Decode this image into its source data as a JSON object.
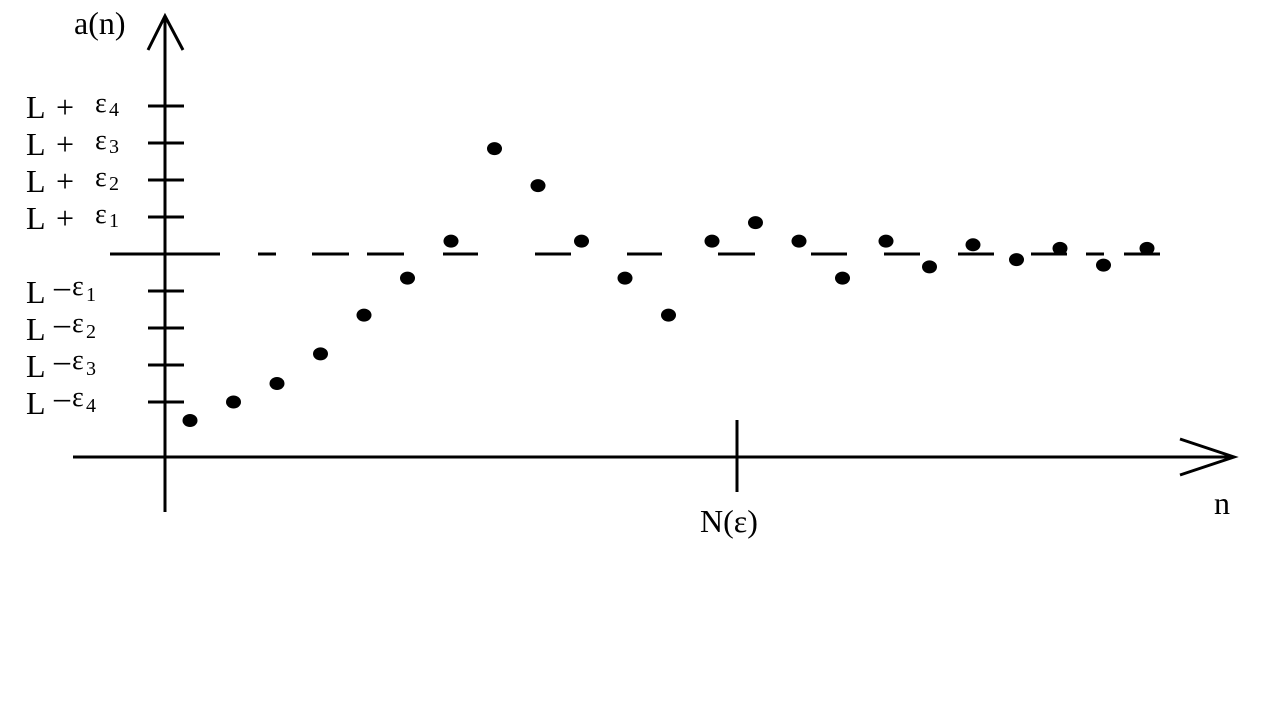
{
  "axes": {
    "y_label": "a(n)",
    "x_label": "n",
    "marker_label": "N(ε)"
  },
  "levels": [
    {
      "id": "plus-4",
      "L": "L",
      "sign": "+",
      "eps": "ε",
      "sub": "4"
    },
    {
      "id": "plus-3",
      "L": "L",
      "sign": "+",
      "eps": "ε",
      "sub": "3"
    },
    {
      "id": "plus-2",
      "L": "L",
      "sign": "+",
      "eps": "ε",
      "sub": "2"
    },
    {
      "id": "plus-1",
      "L": "L",
      "sign": "+",
      "eps": "ε",
      "sub": "1"
    },
    {
      "id": "minus-1",
      "L": "L",
      "sign": "–",
      "eps": "ε",
      "sub": "1"
    },
    {
      "id": "minus-2",
      "L": "L",
      "sign": "–",
      "eps": "ε",
      "sub": "2"
    },
    {
      "id": "minus-3",
      "L": "L",
      "sign": "–",
      "eps": "ε",
      "sub": "3"
    },
    {
      "id": "minus-4",
      "L": "L",
      "sign": "–",
      "eps": "ε",
      "sub": "4"
    }
  ],
  "sequence_points": [
    {
      "n": 1,
      "a": -4.5
    },
    {
      "n": 2,
      "a": -4.0
    },
    {
      "n": 3,
      "a": -3.5
    },
    {
      "n": 4,
      "a": -2.7
    },
    {
      "n": 5,
      "a": -1.65
    },
    {
      "n": 6,
      "a": -0.65
    },
    {
      "n": 7,
      "a": 0.35
    },
    {
      "n": 8,
      "a": 2.85
    },
    {
      "n": 9,
      "a": 1.85
    },
    {
      "n": 10,
      "a": 0.35
    },
    {
      "n": 11,
      "a": -0.65
    },
    {
      "n": 12,
      "a": -1.65
    },
    {
      "n": 13,
      "a": 0.35
    },
    {
      "n": 14,
      "a": 0.85
    },
    {
      "n": 15,
      "a": 0.35
    },
    {
      "n": 16,
      "a": -0.65
    },
    {
      "n": 17,
      "a": 0.35
    },
    {
      "n": 18,
      "a": -0.35
    },
    {
      "n": 19,
      "a": 0.25
    },
    {
      "n": 20,
      "a": -0.15
    },
    {
      "n": 21,
      "a": 0.15
    },
    {
      "n": 22,
      "a": -0.3
    },
    {
      "n": 23,
      "a": 0.15
    }
  ]
}
